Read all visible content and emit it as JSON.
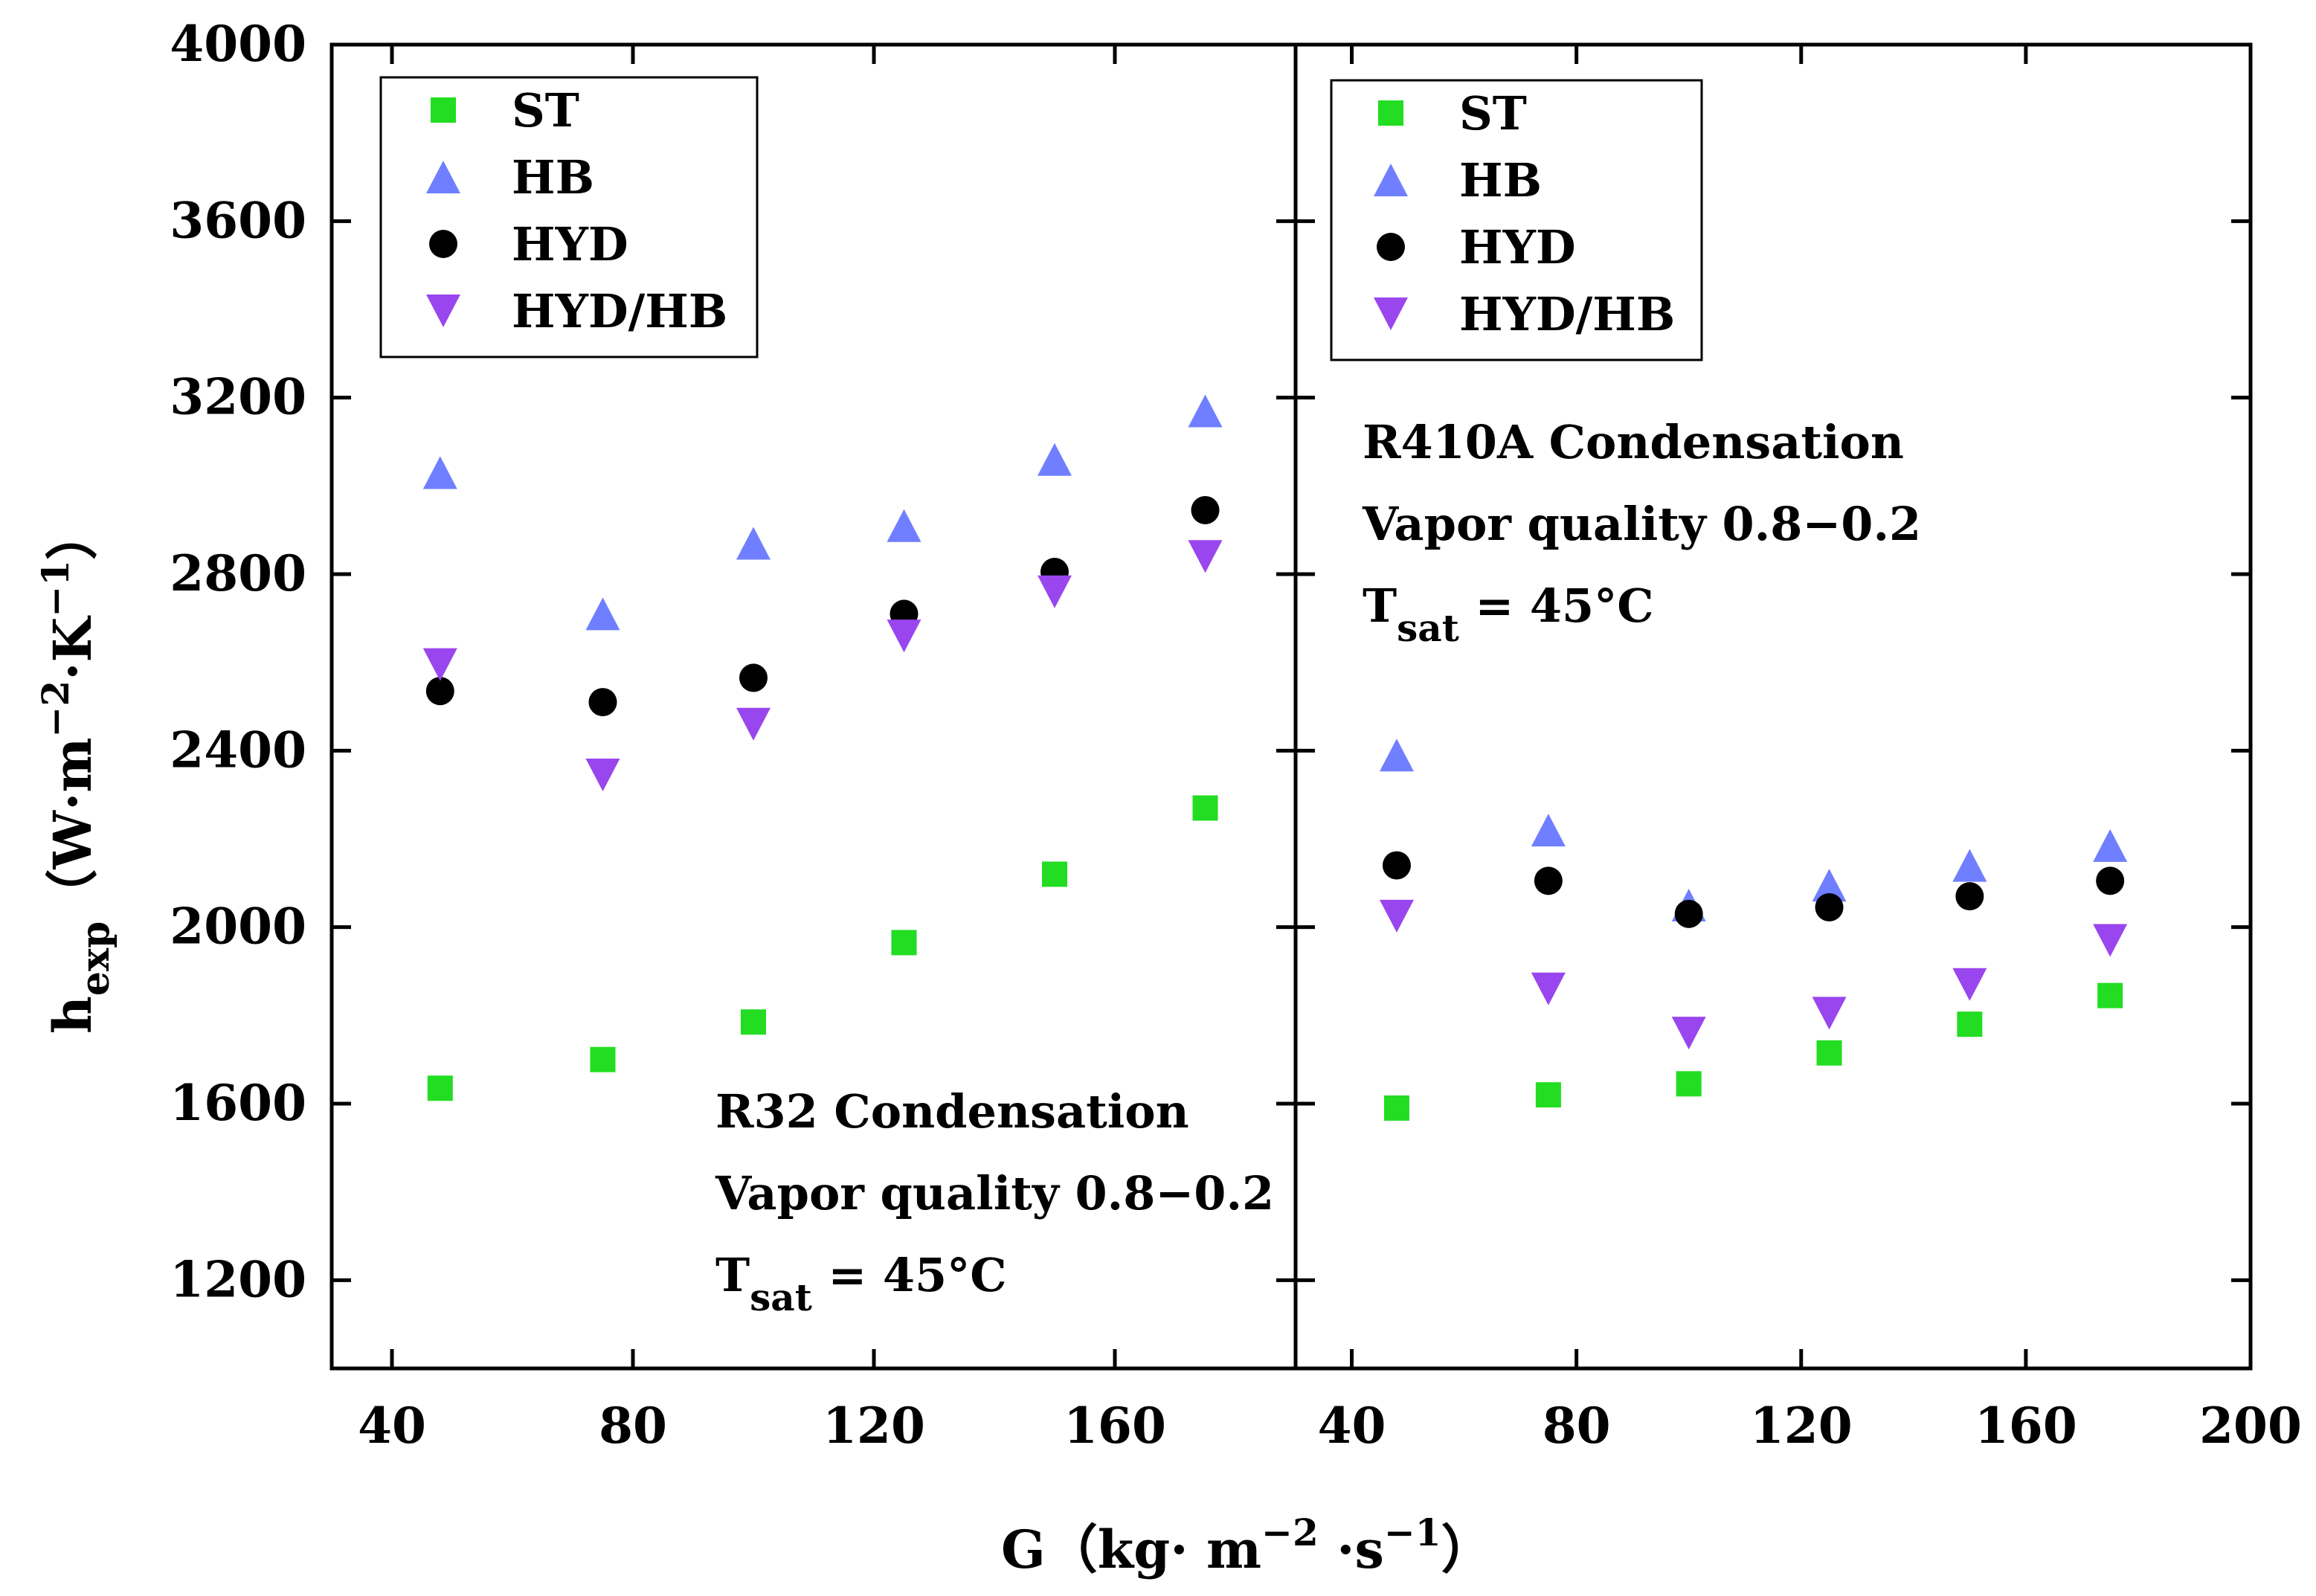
{
  "chart_data": [
    {
      "type": "scatter",
      "panel": "left",
      "annotation": [
        "R32 Condensation",
        "Vapor quality 0.8−0.2",
        "T",
        "sat",
        " = 45°C"
      ],
      "xlim": [
        30,
        190
      ],
      "ylim": [
        1000,
        4000
      ],
      "x_ticks": [
        40,
        80,
        120,
        160
      ],
      "y_ticks": [
        1200,
        1600,
        2000,
        2400,
        2800,
        3200,
        3600,
        4000
      ],
      "x": [
        48,
        75,
        100,
        125,
        150,
        175
      ],
      "series": [
        {
          "name": "ST",
          "marker": "square",
          "color": "#22dd22",
          "values": [
            1635,
            1700,
            1785,
            1965,
            2120,
            2270
          ]
        },
        {
          "name": "HB",
          "marker": "triangle-up",
          "color": "#6f7fff",
          "values": [
            3030,
            2710,
            2870,
            2910,
            3060,
            3170
          ]
        },
        {
          "name": "HYD",
          "marker": "circle",
          "color": "#000000",
          "values": [
            2535,
            2510,
            2565,
            2710,
            2805,
            2945
          ]
        },
        {
          "name": "HYD/HB",
          "marker": "triangle-down",
          "color": "#9a46ee",
          "values": [
            2595,
            2345,
            2460,
            2660,
            2760,
            2840
          ]
        }
      ]
    },
    {
      "type": "scatter",
      "panel": "right",
      "annotation": [
        "R410A Condensation",
        "Vapor quality 0.8−0.2",
        "T",
        "sat",
        " = 45°C"
      ],
      "xlim": [
        30,
        200
      ],
      "ylim": [
        1000,
        4000
      ],
      "x_ticks": [
        40,
        80,
        120,
        160,
        200
      ],
      "x": [
        48,
        75,
        100,
        125,
        150,
        175
      ],
      "series": [
        {
          "name": "ST",
          "marker": "square",
          "color": "#22dd22",
          "values": [
            1590,
            1620,
            1645,
            1715,
            1780,
            1845
          ]
        },
        {
          "name": "HB",
          "marker": "triangle-up",
          "color": "#6f7fff",
          "values": [
            2390,
            2220,
            2050,
            2095,
            2140,
            2185
          ]
        },
        {
          "name": "HYD",
          "marker": "circle",
          "color": "#000000",
          "values": [
            2140,
            2105,
            2030,
            2045,
            2070,
            2105
          ]
        },
        {
          "name": "HYD/HB",
          "marker": "triangle-down",
          "color": "#9a46ee",
          "values": [
            2025,
            1860,
            1760,
            1805,
            1870,
            1970
          ]
        }
      ]
    }
  ],
  "axes": {
    "ylabel_main": "h",
    "ylabel_sub": "exp",
    "ylabel_units": [
      "（W·m",
      "−2",
      "·K",
      "−1",
      "）"
    ],
    "xlabel": [
      "G（kg· m",
      "−2",
      " ·s",
      "−1",
      "）"
    ]
  },
  "legend": [
    "ST",
    "HB",
    "HYD",
    "HYD/HB"
  ]
}
